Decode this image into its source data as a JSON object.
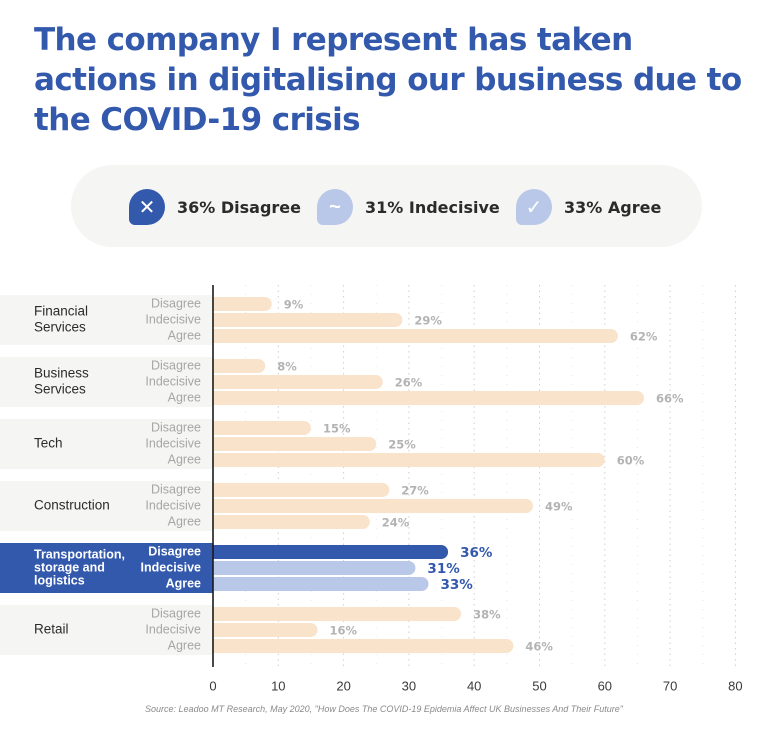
{
  "title": "The company I represent has taken actions in digitalising our business due to the COVID-19 crisis",
  "legend": [
    {
      "icon": "x-icon",
      "glyph": "✕",
      "text": "36% Disagree",
      "color": "#3359ad"
    },
    {
      "icon": "tilde-icon",
      "glyph": "~",
      "text": "31% Indecisive",
      "color": "#b9c8e8"
    },
    {
      "icon": "check-icon",
      "glyph": "✓",
      "text": "33% Agree",
      "color": "#b9c8e8"
    }
  ],
  "source": "Source: Leadoo MT Research, May 2020, \"How Does The COVID-19 Epidemia Affect UK Businesses And Their Future\"",
  "chart_data": {
    "type": "bar",
    "orientation": "horizontal",
    "xlim": [
      0,
      80
    ],
    "x_ticks": [
      0,
      10,
      20,
      30,
      40,
      50,
      60,
      70,
      80
    ],
    "grid": true,
    "series_labels": [
      "Disagree",
      "Indecisive",
      "Agree"
    ],
    "highlight_category": "Transportation, storage and logistics",
    "groups": [
      {
        "category": "Financial Services",
        "lines": [
          "Financial",
          "Services"
        ],
        "values": [
          9,
          29,
          62
        ],
        "labels": [
          "9%",
          "29%",
          "62%"
        ]
      },
      {
        "category": "Business Services",
        "lines": [
          "Business",
          "Services"
        ],
        "values": [
          8,
          26,
          66
        ],
        "labels": [
          "8%",
          "26%",
          "66%"
        ]
      },
      {
        "category": "Tech",
        "lines": [
          "Tech"
        ],
        "values": [
          15,
          25,
          60
        ],
        "labels": [
          "15%",
          "25%",
          "60%"
        ]
      },
      {
        "category": "Construction",
        "lines": [
          "Construction"
        ],
        "values": [
          27,
          49,
          24
        ],
        "labels": [
          "27%",
          "49%",
          "24%"
        ]
      },
      {
        "category": "Transportation, storage and logistics",
        "lines": [
          "Transportation,",
          "storage and",
          "logistics"
        ],
        "values": [
          36,
          31,
          33
        ],
        "labels": [
          "36%",
          "31%",
          "33%"
        ]
      },
      {
        "category": "Retail",
        "lines": [
          "Retail"
        ],
        "values": [
          38,
          16,
          46
        ],
        "labels": [
          "38%",
          "16%",
          "46%"
        ]
      }
    ],
    "colors": {
      "bar": "#f9e3cb",
      "bar_label": "#b3b3b3",
      "series_label": "#a6a6a6",
      "row_bg": "#f5f5f3",
      "highlight_bg": "#3359ad",
      "highlight_bar_1": "#3359ad",
      "highlight_bar_2": "#b9c8e8",
      "highlight_label": "#3359ad"
    }
  }
}
